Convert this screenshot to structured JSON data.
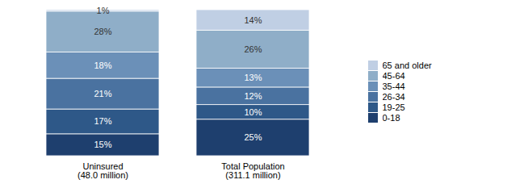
{
  "chart_data": {
    "type": "bar",
    "stacked": true,
    "data_labels": true,
    "tick_labels": "x",
    "categories": [
      "Uninsured\n(48.0 million)",
      "Total Population\n(311.1 million)"
    ],
    "ylim": [
      0,
      100
    ],
    "series": [
      {
        "name": "65 and older",
        "color": "#c0cfe4",
        "values": [
          1,
          14
        ],
        "value_labels": [
          "1%",
          "14%"
        ]
      },
      {
        "name": "45-64",
        "color": "#8faec8",
        "values": [
          28,
          26
        ],
        "value_labels": [
          "28%",
          "26%"
        ]
      },
      {
        "name": "35-44",
        "color": "#6b90b8",
        "values": [
          18,
          13
        ],
        "value_labels": [
          "18%",
          "13%"
        ]
      },
      {
        "name": "26-34",
        "color": "#4a72a0",
        "values": [
          21,
          12
        ],
        "value_labels": [
          "21%",
          "12%"
        ]
      },
      {
        "name": "19-25",
        "color": "#2e5888",
        "values": [
          17,
          10
        ],
        "value_labels": [
          "17%",
          "10%"
        ]
      },
      {
        "name": "0-18",
        "color": "#1e3f6e",
        "values": [
          15,
          25
        ],
        "value_labels": [
          "15%",
          "25%"
        ]
      }
    ]
  }
}
